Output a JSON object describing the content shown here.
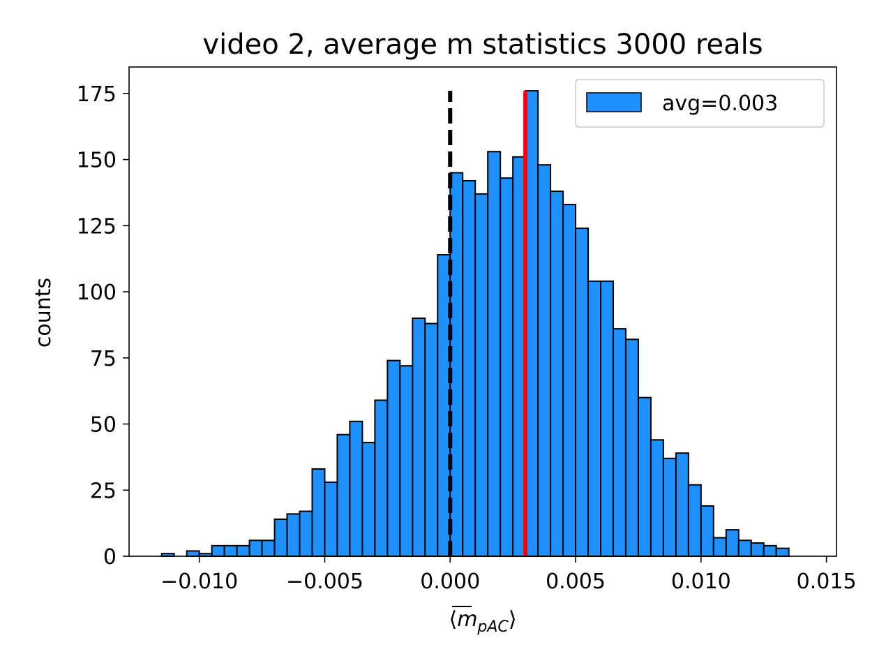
{
  "chart_data": {
    "type": "bar",
    "title": "video 2, average m statistics 3000 reals",
    "xlabel": "⟨m̄pAC⟩",
    "xlabel_parts": {
      "open": "⟨",
      "symbol": "m",
      "subscript": "pAC",
      "close": "⟩"
    },
    "ylabel": "counts",
    "xlim": [
      -0.0128,
      0.0154
    ],
    "ylim": [
      0,
      185
    ],
    "xticks": [
      -0.01,
      -0.005,
      0.0,
      0.005,
      0.01,
      0.015
    ],
    "xtick_labels": [
      "−0.010",
      "−0.005",
      "0.000",
      "0.005",
      "0.010",
      "0.015"
    ],
    "yticks": [
      0,
      25,
      50,
      75,
      100,
      125,
      150,
      175
    ],
    "ytick_labels": [
      "0",
      "25",
      "50",
      "75",
      "100",
      "125",
      "150",
      "175"
    ],
    "bin_start": -0.0115,
    "bin_width": 0.0005,
    "values": [
      1,
      0,
      2,
      1,
      4,
      4,
      4,
      6,
      6,
      14,
      16,
      17,
      33,
      28,
      46,
      51,
      43,
      59,
      74,
      72,
      90,
      88,
      114,
      145,
      142,
      137,
      153,
      143,
      151,
      176,
      148,
      138,
      133,
      124,
      104,
      104,
      86,
      82,
      60,
      44,
      37,
      39,
      27,
      19,
      7,
      10,
      6,
      5,
      4,
      3
    ],
    "bar_color": "#1e90ff",
    "bar_edge_color": "#000000",
    "reference_lines": [
      {
        "x": 0.0,
        "color": "#000000",
        "style": "dashed",
        "y_top": 176
      },
      {
        "x": 0.003,
        "color": "#ff0000",
        "style": "solid",
        "y_top": 176
      }
    ],
    "legend": {
      "label": "avg=0.003",
      "location": "upper right"
    },
    "grid": false
  }
}
